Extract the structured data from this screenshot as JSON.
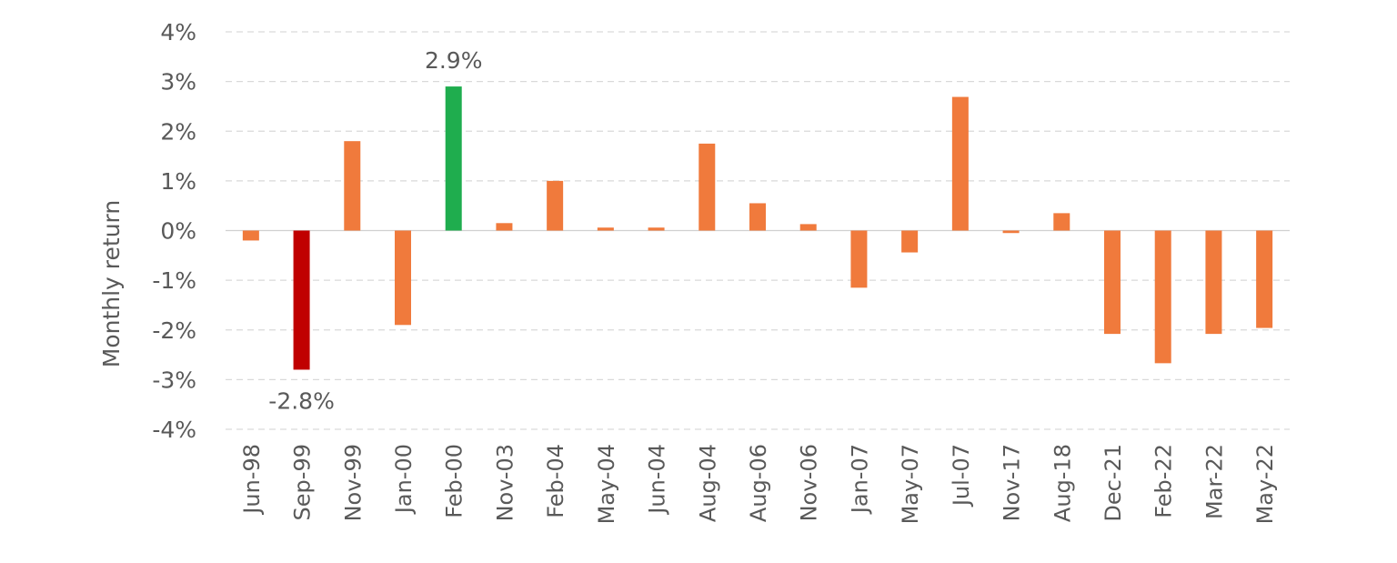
{
  "chart_data": {
    "type": "bar",
    "title": "",
    "xlabel": "",
    "ylabel": "Monthly return",
    "ylim": [
      -4,
      4
    ],
    "yticks": [
      4,
      3,
      2,
      1,
      0,
      -1,
      -2,
      -3,
      -4
    ],
    "ytick_labels": [
      "4%",
      "3%",
      "2%",
      "1%",
      "0%",
      "-1%",
      "-2%",
      "-3%",
      "-4%"
    ],
    "grid": true,
    "categories": [
      "Jun-98",
      "Sep-99",
      "Nov-99",
      "Jan-00",
      "Feb-00",
      "Nov-03",
      "Feb-04",
      "May-04",
      "Jun-04",
      "Aug-04",
      "Aug-06",
      "Nov-06",
      "Jan-07",
      "May-07",
      "Jul-07",
      "Nov-17",
      "Aug-18",
      "Dec-21",
      "Feb-22",
      "Mar-22",
      "May-22"
    ],
    "values": [
      -0.2,
      -2.8,
      1.8,
      -1.9,
      2.9,
      0.15,
      1.0,
      0.06,
      0.06,
      1.75,
      0.55,
      0.13,
      -1.15,
      -0.44,
      2.69,
      -0.05,
      0.35,
      -2.08,
      -2.67,
      -2.08,
      -1.96
    ],
    "colors": {
      "default": "#F07A3C",
      "min": "#C00000",
      "max": "#1FAD4E"
    },
    "highlight": {
      "min_index": 1,
      "max_index": 4
    },
    "data_labels": [
      {
        "index": 1,
        "text": "-2.8%"
      },
      {
        "index": 4,
        "text": "2.9%"
      }
    ]
  }
}
